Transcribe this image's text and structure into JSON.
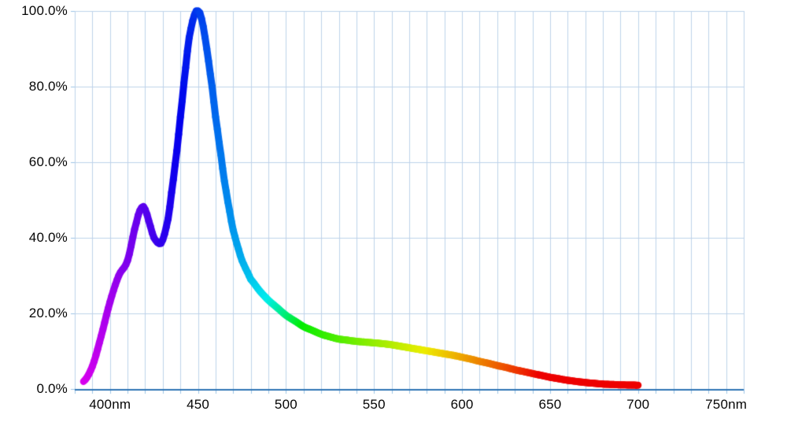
{
  "page": {
    "background": "#ffffff"
  },
  "chart_data": {
    "type": "line",
    "title": "",
    "description": "Relative spectral power distribution, line colored by wavelength (violet through red)",
    "x_axis": {
      "min": 380,
      "max": 760,
      "minor_grid_step": 10,
      "ticks": [
        {
          "value": 400,
          "label": "400nm"
        },
        {
          "value": 450,
          "label": "450"
        },
        {
          "value": 500,
          "label": "500"
        },
        {
          "value": 550,
          "label": "550"
        },
        {
          "value": 600,
          "label": "600"
        },
        {
          "value": 650,
          "label": "650"
        },
        {
          "value": 700,
          "label": "700"
        },
        {
          "value": 750,
          "label": "750nm"
        }
      ]
    },
    "y_axis": {
      "min": 0,
      "max": 100,
      "tick_step": 20,
      "tick_labels": [
        "0.0%",
        "20.0%",
        "40.0%",
        "60.0%",
        "80.0%",
        "100.0%"
      ]
    },
    "grid": "on",
    "legend": "none",
    "series": [
      {
        "name": "relative-spectral-power",
        "color_mode": "spectral-by-wavelength",
        "x": [
          385,
          390,
          395,
          400,
          405,
          410,
          415,
          418,
          420,
          423,
          425,
          428,
          430,
          433,
          435,
          438,
          440,
          443,
          445,
          448,
          450,
          452,
          455,
          458,
          460,
          463,
          465,
          468,
          470,
          473,
          475,
          478,
          480,
          485,
          490,
          495,
          500,
          505,
          510,
          515,
          520,
          525,
          530,
          535,
          540,
          545,
          550,
          555,
          560,
          565,
          570,
          575,
          580,
          585,
          590,
          595,
          600,
          605,
          610,
          615,
          620,
          625,
          630,
          635,
          640,
          645,
          650,
          655,
          660,
          665,
          670,
          675,
          680,
          685,
          690,
          695,
          700
        ],
        "y": [
          2,
          6,
          14,
          23,
          30,
          34,
          44,
          48,
          47.5,
          43,
          40,
          38.5,
          39.5,
          45,
          52,
          63,
          72,
          85,
          93,
          99,
          100,
          98,
          90,
          80,
          72,
          62,
          55,
          47,
          42,
          37,
          34,
          31,
          29,
          26,
          23.5,
          21.5,
          19.5,
          18,
          16.5,
          15.5,
          14.5,
          13.8,
          13.2,
          12.9,
          12.6,
          12.4,
          12.2,
          12,
          11.7,
          11.3,
          10.9,
          10.5,
          10.1,
          9.7,
          9.3,
          8.9,
          8.4,
          7.9,
          7.3,
          6.8,
          6.2,
          5.7,
          5.1,
          4.6,
          4.1,
          3.6,
          3.1,
          2.7,
          2.3,
          2,
          1.7,
          1.5,
          1.3,
          1.2,
          1.1,
          1.05,
          1
        ]
      }
    ],
    "style": {
      "grid_color": "#bed3ea",
      "axis_color": "#2e74b5",
      "tick_color": "#9dc3e6",
      "label_color": "#050505",
      "line_width": 9,
      "background": "#ffffff"
    }
  }
}
